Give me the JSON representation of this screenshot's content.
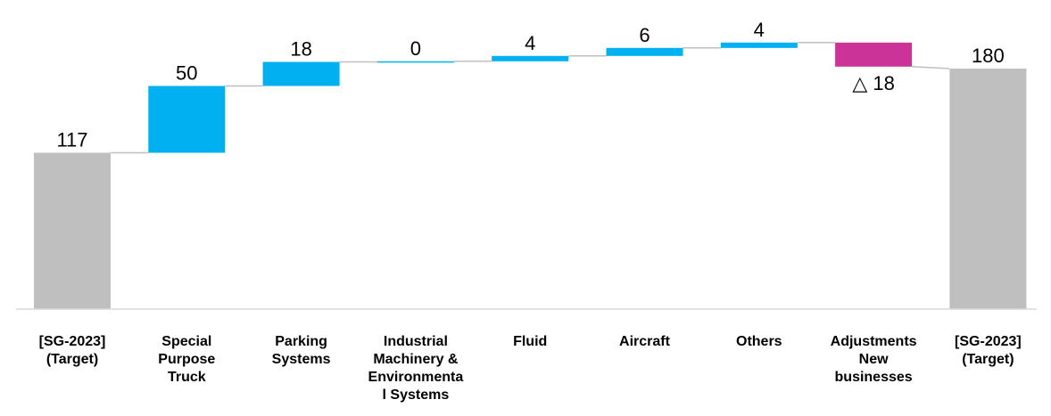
{
  "chart_data": {
    "type": "bar",
    "subtype": "waterfall",
    "title": "",
    "xlabel": "",
    "ylabel": "",
    "grid": false,
    "ylim": [
      0,
      180
    ],
    "colors": {
      "total": "#BFBFBF",
      "increase": "#00B0F0",
      "decrease": "#CC3399",
      "connector": "#BFBFBF",
      "axis": "#D9D9D9"
    },
    "items": [
      {
        "category": [
          "[SG-2023]",
          "(Target)"
        ],
        "kind": "total",
        "value": 117,
        "label": "117"
      },
      {
        "category": [
          "Special",
          "Purpose",
          "Truck"
        ],
        "kind": "increase",
        "value": 50,
        "label": "50"
      },
      {
        "category": [
          "Parking",
          "Systems"
        ],
        "kind": "increase",
        "value": 18,
        "label": "18"
      },
      {
        "category": [
          "Industrial",
          "Machinery &",
          "Environmenta",
          "l Systems"
        ],
        "kind": "increase",
        "value": 0.5,
        "label": "0"
      },
      {
        "category": [
          "Fluid"
        ],
        "kind": "increase",
        "value": 4,
        "label": "4"
      },
      {
        "category": [
          "Aircraft"
        ],
        "kind": "increase",
        "value": 6,
        "label": "6"
      },
      {
        "category": [
          "Others"
        ],
        "kind": "increase",
        "value": 4,
        "label": "4"
      },
      {
        "category": [
          "Adjustments",
          "New",
          "businesses"
        ],
        "kind": "decrease",
        "value": -18,
        "label": "△ 18"
      },
      {
        "category": [
          "[SG-2023]",
          "(Target)"
        ],
        "kind": "total",
        "value": 180,
        "label": "180"
      }
    ]
  }
}
